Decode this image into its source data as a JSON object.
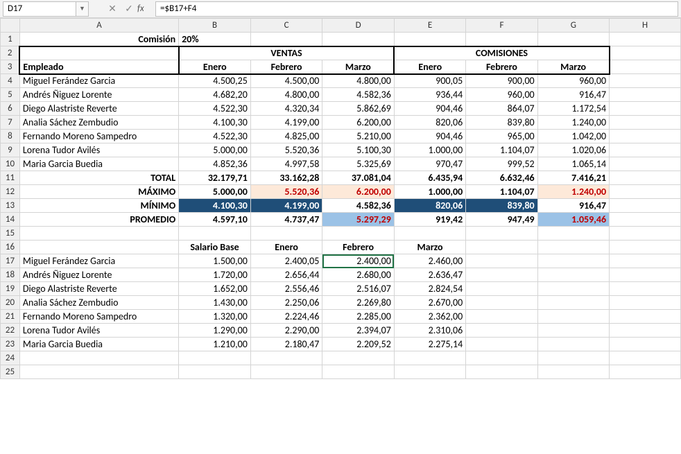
{
  "formula_bar": {
    "cell_ref": "D17",
    "cancel_icon": "✕",
    "confirm_icon": "✓",
    "fx_label": "fx",
    "formula": "=$B17+F4"
  },
  "columns": [
    "A",
    "B",
    "C",
    "D",
    "E",
    "F",
    "G",
    "H"
  ],
  "row_headers": [
    "1",
    "2",
    "3",
    "4",
    "5",
    "6",
    "7",
    "8",
    "9",
    "10",
    "11",
    "12",
    "13",
    "14",
    "15",
    "16",
    "17",
    "18",
    "19",
    "20",
    "21",
    "22",
    "23",
    "24",
    "25"
  ],
  "r1": {
    "a": "Comisión",
    "b": "20%"
  },
  "r2": {
    "ventas": "VENTAS",
    "comisiones": "COMISIONES"
  },
  "r3": {
    "a": "Empleado",
    "b": "Enero",
    "c": "Febrero",
    "d": "Marzo",
    "e": "Enero",
    "f": "Febrero",
    "g": "Marzo"
  },
  "data_rows": [
    {
      "a": "Miguel Ferández Garcia",
      "b": "4.500,25",
      "c": "4.500,00",
      "d": "4.800,00",
      "e": "900,05",
      "f": "900,00",
      "g": "960,00"
    },
    {
      "a": "Andrés Ñiguez Lorente",
      "b": "4.682,20",
      "c": "4.800,00",
      "d": "4.582,36",
      "e": "936,44",
      "f": "960,00",
      "g": "916,47"
    },
    {
      "a": "Diego Alastriste Reverte",
      "b": "4.522,30",
      "c": "4.320,34",
      "d": "5.862,69",
      "e": "904,46",
      "f": "864,07",
      "g": "1.172,54"
    },
    {
      "a": "Analia Sáchez Zembudio",
      "b": "4.100,30",
      "c": "4.199,00",
      "d": "6.200,00",
      "e": "820,06",
      "f": "839,80",
      "g": "1.240,00"
    },
    {
      "a": "Fernando Moreno Sampedro",
      "b": "4.522,30",
      "c": "4.825,00",
      "d": "5.210,00",
      "e": "904,46",
      "f": "965,00",
      "g": "1.042,00"
    },
    {
      "a": "Lorena Tudor Avilés",
      "b": "5.000,00",
      "c": "5.520,36",
      "d": "5.100,30",
      "e": "1.000,00",
      "f": "1.104,07",
      "g": "1.020,06"
    },
    {
      "a": "Maria Garcia Buedia",
      "b": "4.852,36",
      "c": "4.997,58",
      "d": "5.325,69",
      "e": "970,47",
      "f": "999,52",
      "g": "1.065,14"
    }
  ],
  "totals": {
    "total": {
      "a": "TOTAL",
      "b": "32.179,71",
      "c": "33.162,28",
      "d": "37.081,04",
      "e": "6.435,94",
      "f": "6.632,46",
      "g": "7.416,21"
    },
    "maximo": {
      "a": "MÁXIMO",
      "b": "5.000,00",
      "c": "5.520,36",
      "d": "6.200,00",
      "e": "1.000,00",
      "f": "1.104,07",
      "g": "1.240,00"
    },
    "minimo": {
      "a": "MÍNIMO",
      "b": "4.100,30",
      "c": "4.199,00",
      "d": "4.582,36",
      "e": "820,06",
      "f": "839,80",
      "g": "916,47"
    },
    "promedio": {
      "a": "PROMEDIO",
      "b": "4.597,10",
      "c": "4.737,47",
      "d": "5.297,29",
      "e": "919,42",
      "f": "947,49",
      "g": "1.059,46"
    }
  },
  "r16": {
    "b": "Salario Base",
    "c": "Enero",
    "d": "Febrero",
    "e": "Marzo"
  },
  "salary_rows": [
    {
      "a": "Miguel Ferández Garcia",
      "b": "1.500,00",
      "c": "2.400,05",
      "d": "2.400,00",
      "e": "2.460,00"
    },
    {
      "a": "Andrés Ñiguez Lorente",
      "b": "1.720,00",
      "c": "2.656,44",
      "d": "2.680,00",
      "e": "2.636,47"
    },
    {
      "a": "Diego Alastriste Reverte",
      "b": "1.652,00",
      "c": "2.556,46",
      "d": "2.516,07",
      "e": "2.824,54"
    },
    {
      "a": "Analia Sáchez Zembudio",
      "b": "1.430,00",
      "c": "2.250,06",
      "d": "2.269,80",
      "e": "2.670,00"
    },
    {
      "a": "Fernando Moreno Sampedro",
      "b": "1.320,00",
      "c": "2.224,46",
      "d": "2.285,00",
      "e": "2.362,00"
    },
    {
      "a": "Lorena Tudor Avilés",
      "b": "1.290,00",
      "c": "2.290,00",
      "d": "2.394,07",
      "e": "2.310,06"
    },
    {
      "a": "Maria Garcia Buedia",
      "b": "1.210,00",
      "c": "2.180,47",
      "d": "2.209,52",
      "e": "2.275,14"
    }
  ],
  "colors": {
    "peach": "#fde9d9",
    "navy": "#1f4e78",
    "sky": "#9bc2e6",
    "red_text": "#c00000",
    "selection": "#217346"
  }
}
